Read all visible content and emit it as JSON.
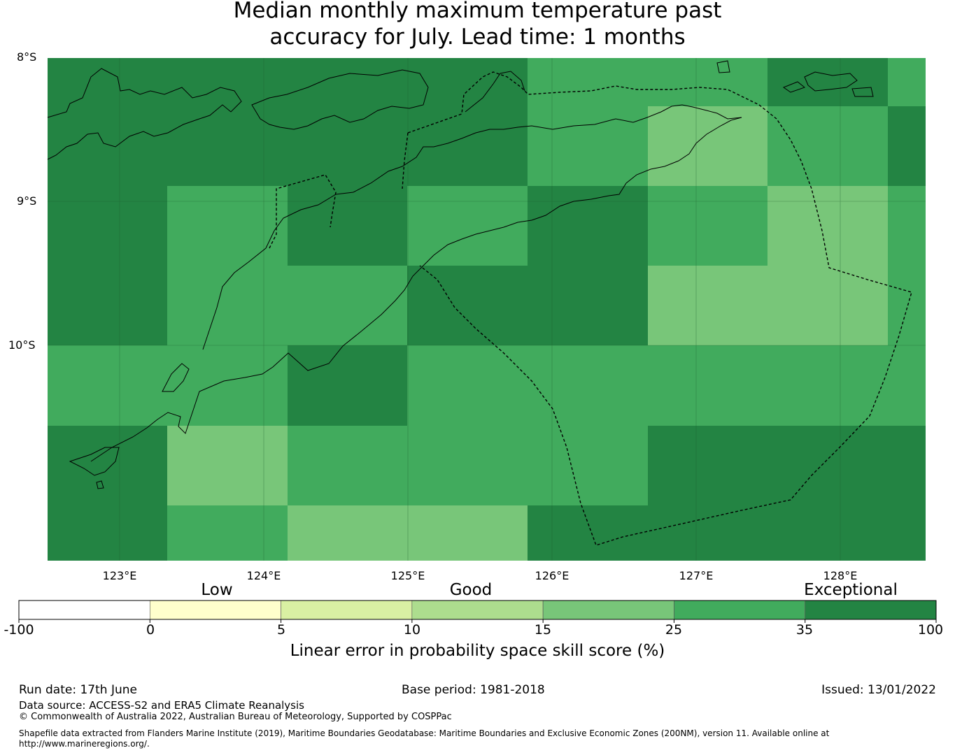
{
  "title_line1": "Median monthly maximum temperature past",
  "title_line2": "accuracy for July. Lead time: 1 months",
  "map": {
    "lat_labels": [
      "8°S",
      "9°S",
      "10°S"
    ],
    "lon_labels": [
      "123°E",
      "124°E",
      "125°E",
      "126°E",
      "127°E",
      "128°E"
    ],
    "grid_values": [
      [
        "exceptional",
        "exceptional",
        "exceptional",
        "exceptional",
        "good",
        "good",
        "exceptional",
        "good"
      ],
      [
        "exceptional",
        "exceptional",
        "exceptional",
        "exceptional",
        "good",
        "lowgood",
        "good",
        "exceptional"
      ],
      [
        "exceptional",
        "good",
        "exceptional",
        "good",
        "exceptional",
        "good",
        "lowgood",
        "good"
      ],
      [
        "exceptional",
        "good",
        "good",
        "exceptional",
        "exceptional",
        "lowgood",
        "lowgood",
        "good"
      ],
      [
        "good",
        "good",
        "exceptional",
        "good",
        "good",
        "good",
        "good",
        "good"
      ],
      [
        "exceptional",
        "lowgood",
        "good",
        "good",
        "good",
        "exceptional",
        "exceptional",
        "exceptional"
      ],
      [
        "exceptional",
        "good",
        "lowgood",
        "lowgood",
        "exceptional",
        "exceptional",
        "exceptional",
        "exceptional"
      ]
    ]
  },
  "colorbar": {
    "category_labels": [
      "Low",
      "Good",
      "Exceptional"
    ],
    "ticks": [
      "-100",
      "0",
      "5",
      "10",
      "15",
      "25",
      "35",
      "100"
    ],
    "colors": [
      "#ffffff",
      "#ffffcc",
      "#d9f0a3",
      "#addd8e",
      "#78c679",
      "#41ab5d",
      "#238443"
    ],
    "label": "Linear error in probability space skill score (%)"
  },
  "footer": {
    "run_date": "Run date: 17th June",
    "base_period": "Base period: 1981-2018",
    "issued": "Issued: 13/01/2022",
    "data_source": "Data source: ACCESS-S2 and ERA5 Climate Reanalysis",
    "copyright": "© Commonwealth of Australia 2022, Australian Bureau of Meteorology, Supported by COSPPac",
    "shapefile_line1": "Shapefile data extracted from Flanders Marine Institute (2019), Maritime Boundaries Geodatabase: Maritime Boundaries and Exclusive Economic Zones (200NM), version 11. Available online at",
    "shapefile_line2": "http://www.marineregions.org/."
  }
}
